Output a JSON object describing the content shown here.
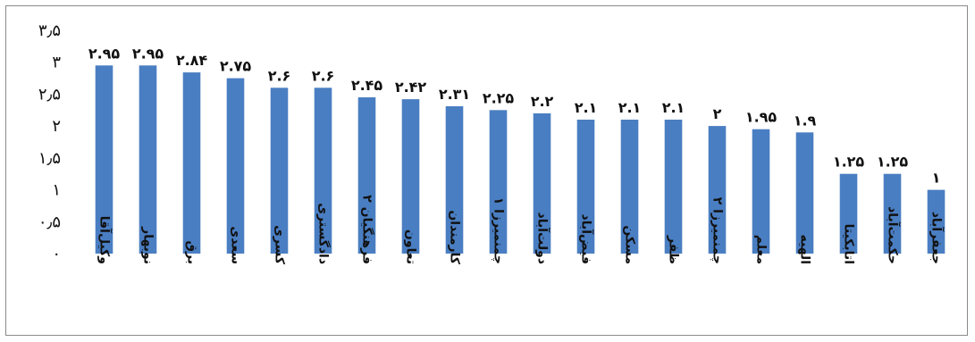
{
  "chart_data": {
    "type": "bar",
    "categories": [
      "وکیل‌آقا",
      "نوبهار",
      "برق",
      "سعدی",
      "کسری",
      "دادگستری",
      "فرهنگیان ۲",
      "تعاون",
      "کارمندان",
      "چمنمیرزا ۱",
      "دولت‌آباد",
      "فیض‌آباد",
      "مسکن",
      "ظفر",
      "چمنمیرزا ۲",
      "معلم",
      "الهیه",
      "اتابکیتا",
      "حکمت‌آباد",
      "جعفرآباد"
    ],
    "values": [
      2.95,
      2.95,
      2.84,
      2.75,
      2.6,
      2.6,
      2.45,
      2.42,
      2.31,
      2.25,
      2.2,
      2.1,
      2.1,
      2.1,
      2.0,
      1.95,
      1.9,
      1.25,
      1.25,
      1.0
    ],
    "value_labels": [
      "۲.۹۵",
      "۲.۹۵",
      "۲.۸۴",
      "۲.۷۵",
      "۲.۶",
      "۲.۶",
      "۲.۴۵",
      "۲.۴۲",
      "۲.۳۱",
      "۲.۲۵",
      "۲.۲",
      "۲.۱",
      "۲.۱",
      "۲.۱",
      "۲",
      "۱.۹۵",
      "۱.۹",
      "۱.۲۵",
      "۱.۲۵",
      "۱"
    ],
    "y_ticks": [
      0,
      0.5,
      1,
      1.5,
      2,
      2.5,
      3,
      3.5
    ],
    "y_tick_labels": [
      "۰",
      "۰٫۵",
      "۱",
      "۱٫۵",
      "۲",
      "۲٫۵",
      "۳",
      "۳٫۵"
    ],
    "ylim": [
      0,
      3.5
    ],
    "title": "",
    "xlabel": "",
    "ylabel": "",
    "grid": false,
    "legend": "none",
    "bar_color": "#4a7ec2"
  }
}
